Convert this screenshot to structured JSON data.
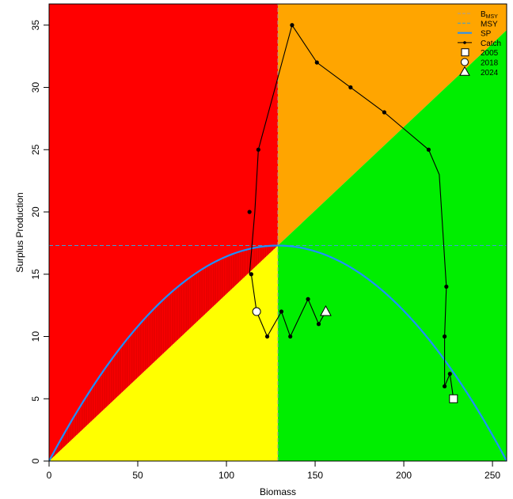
{
  "chart_data": {
    "type": "scatter",
    "title": "",
    "xlabel": "Biomass",
    "ylabel": "Surplus Production",
    "xlim": [
      0,
      258
    ],
    "ylim": [
      0,
      36.7
    ],
    "xticks": [
      0,
      50,
      100,
      150,
      200,
      250
    ],
    "yticks": [
      0,
      5,
      10,
      15,
      20,
      25,
      30,
      35
    ],
    "xtick_labels": [
      "0",
      "50",
      "100",
      "150",
      "200",
      "250"
    ],
    "ytick_labels": [
      "0",
      "5",
      "10",
      "15",
      "20",
      "25",
      "30",
      "35"
    ],
    "grid": false,
    "legend_position": "top-right",
    "bmsy": 129,
    "msy": 17.3,
    "k": 258,
    "zone_colors": {
      "red": "#ff0000",
      "orange": "#ffa500",
      "yellow": "#ffff00",
      "green": "#00ee00",
      "hatch": "#cc0000"
    },
    "line_colors": {
      "bmsy": "#a0a0a0",
      "msy": "#3a9fd8",
      "sp": "#1e90ff",
      "catch": "#000000"
    },
    "legend": [
      {
        "key": "bmsy",
        "label": "B",
        "sub": "MSY",
        "style": "dashed-gray"
      },
      {
        "key": "msy",
        "label": "MSY",
        "style": "dashed-blue"
      },
      {
        "key": "sp",
        "label": "SP",
        "style": "solid-blue"
      },
      {
        "key": "catch",
        "label": "Catch",
        "style": "line-dot"
      },
      {
        "key": "y2005",
        "label": "2005",
        "style": "square"
      },
      {
        "key": "y2018",
        "label": "2018",
        "style": "circle"
      },
      {
        "key": "y2024",
        "label": "2024",
        "style": "triangle"
      }
    ],
    "catch_series": {
      "x": [
        228,
        226,
        223,
        223,
        224,
        220,
        214,
        189,
        170,
        151,
        137,
        118,
        116,
        113,
        114,
        117,
        123,
        131,
        136,
        146,
        152,
        156
      ],
      "y": [
        5,
        7,
        6,
        10,
        14,
        23,
        25,
        28,
        30,
        32,
        35,
        25,
        20,
        15,
        15,
        12,
        10,
        12,
        10,
        13,
        11,
        12
      ]
    },
    "catch_dots": [
      [
        226,
        7
      ],
      [
        223,
        6
      ],
      [
        223,
        10
      ],
      [
        224,
        14
      ],
      [
        214,
        25
      ],
      [
        189,
        28
      ],
      [
        170,
        30
      ],
      [
        151,
        32
      ],
      [
        137,
        35
      ],
      [
        118,
        25
      ],
      [
        113,
        20
      ],
      [
        114,
        15
      ],
      [
        123,
        10
      ],
      [
        131,
        12
      ],
      [
        136,
        10
      ],
      [
        146,
        13
      ],
      [
        152,
        11
      ]
    ],
    "markers": [
      {
        "year": "2005",
        "shape": "square",
        "x": 228,
        "y": 5
      },
      {
        "year": "2018",
        "shape": "circle",
        "x": 117,
        "y": 12
      },
      {
        "year": "2024",
        "shape": "triangle",
        "x": 156,
        "y": 12
      }
    ]
  }
}
